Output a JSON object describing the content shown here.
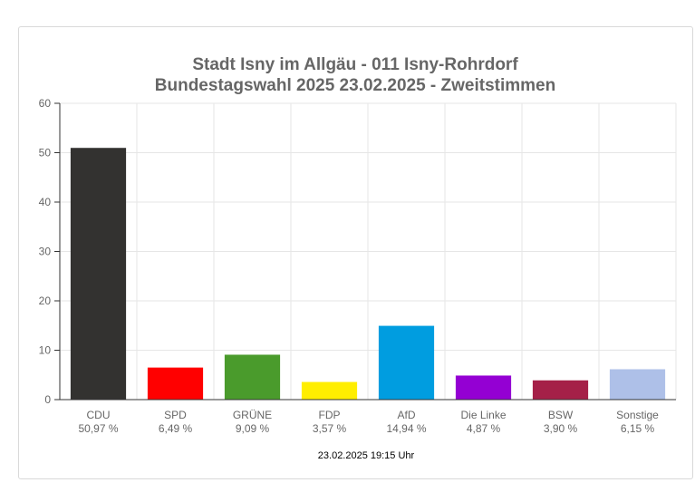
{
  "chart_data": {
    "type": "bar",
    "title": [
      "Stadt Isny im Allgäu - 011 Isny-Rohrdorf",
      "Bundestagswahl 2025 23.02.2025  - Zweitstimmen"
    ],
    "categories": [
      "CDU",
      "SPD",
      "GRÜNE",
      "FDP",
      "AfD",
      "Die Linke",
      "BSW",
      "Sonstige"
    ],
    "values": [
      50.97,
      6.49,
      9.09,
      3.57,
      14.94,
      4.87,
      3.9,
      6.15
    ],
    "value_labels": [
      "50,97 %",
      "6,49 %",
      "9,09 %",
      "3,57 %",
      "14,94 %",
      "4,87 %",
      "3,90 %",
      "6,15 %"
    ],
    "colors": [
      "#333230",
      "#ff0000",
      "#4a9b2c",
      "#ffee00",
      "#009de0",
      "#9400d3",
      "#a52048",
      "#aec0e8"
    ],
    "ylim": [
      0,
      60
    ],
    "yticks": [
      0,
      10,
      20,
      30,
      40,
      50,
      60
    ],
    "grid": true,
    "xlabel": "",
    "ylabel": ""
  },
  "footer": {
    "timestamp": "23.02.2025 19:15 Uhr"
  }
}
